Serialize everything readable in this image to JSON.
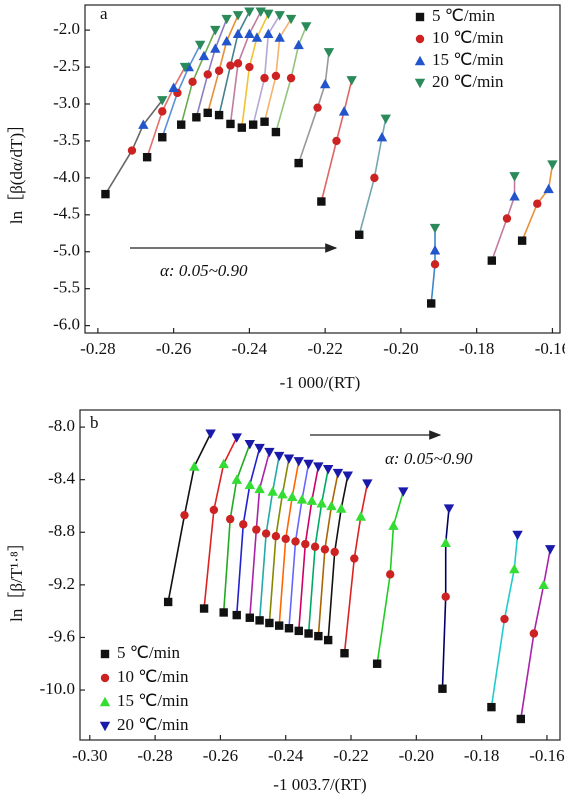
{
  "chart_data": [
    {
      "type": "scatter",
      "panel_label": "a",
      "annotation": "α: 0.05~0.90",
      "x_label": "-1 000/(RT)",
      "y_label": "ln［β(dα/dT)］",
      "xlim": [
        -0.2834,
        -0.158
      ],
      "ylim": [
        -6.1,
        -1.66
      ],
      "xticks": [
        -0.28,
        -0.26,
        -0.24,
        -0.22,
        {
          "value": -0.2,
          "label": "-0.20"
        },
        -0.18,
        -0.16
      ],
      "yticks": [
        {
          "value": -2,
          "label": "-2.0"
        },
        -2.5,
        {
          "value": -3,
          "label": "-3.0"
        },
        -3.5,
        {
          "value": -4,
          "label": "-4.0"
        },
        -4.5,
        {
          "value": -5,
          "label": "-5.0"
        },
        -5.5,
        {
          "value": -6,
          "label": "-6.0"
        }
      ],
      "legend": "top-right",
      "fit_line_colors": [
        "#666666",
        "#e07070",
        "#5b8fd6",
        "#6aa84f",
        "#8e7cc3",
        "#e69138",
        "#45818e",
        "#c27ba0",
        "#f1c232",
        "#b4a7d6",
        "#f6b26b",
        "#93c47d",
        "#999999",
        "#e06666",
        "#76a5af",
        "#3d85c6",
        "#c27ba0",
        "#e69138"
      ],
      "series": [
        {
          "name": "5 ℃/min",
          "color": "#111111",
          "marker": "square",
          "x": [
            -0.278,
            -0.267,
            -0.263,
            -0.258,
            -0.254,
            -0.251,
            -0.248,
            -0.245,
            -0.242,
            -0.239,
            -0.236,
            -0.233,
            -0.227,
            -0.221,
            -0.211,
            -0.192,
            -0.176,
            -0.168
          ],
          "values": [
            -4.22,
            -3.72,
            -3.45,
            -3.28,
            -3.18,
            -3.12,
            -3.15,
            -3.27,
            -3.32,
            -3.28,
            -3.24,
            -3.38,
            -3.8,
            -4.32,
            -4.77,
            -5.7,
            -5.12,
            -4.85
          ]
        },
        {
          "name": "10 ℃/min",
          "color": "#cc2222",
          "marker": "circle",
          "x": [
            -0.271,
            -0.263,
            -0.259,
            -0.255,
            -0.251,
            -0.248,
            -0.245,
            -0.243,
            -0.24,
            -0.236,
            -0.233,
            -0.229,
            -0.222,
            -0.217,
            -0.207,
            -0.191,
            -0.172,
            -0.164
          ],
          "values": [
            -3.63,
            -3.1,
            -2.85,
            -2.7,
            -2.6,
            -2.55,
            -2.48,
            -2.45,
            -2.5,
            -2.65,
            -2.62,
            -2.65,
            -3.05,
            -3.5,
            -4.0,
            -5.17,
            -4.55,
            -4.35
          ]
        },
        {
          "name": "15 ℃/min",
          "color": "#2255cc",
          "marker": "triangle-up",
          "x": [
            -0.268,
            -0.26,
            -0.256,
            -0.252,
            -0.249,
            -0.246,
            -0.243,
            -0.24,
            -0.238,
            -0.235,
            -0.232,
            -0.227,
            -0.22,
            -0.215,
            -0.205,
            -0.191,
            -0.17,
            -0.161
          ],
          "values": [
            -3.28,
            -2.78,
            -2.5,
            -2.35,
            -2.25,
            -2.15,
            -2.05,
            -2.05,
            -2.1,
            -2.05,
            -2.1,
            -2.2,
            -2.73,
            -3.1,
            -3.45,
            -4.98,
            -4.25,
            -4.15
          ]
        },
        {
          "name": "20 ℃/min",
          "color": "#2a8a5a",
          "marker": "triangle-down",
          "x": [
            -0.263,
            -0.257,
            -0.253,
            -0.249,
            -0.246,
            -0.243,
            -0.24,
            -0.237,
            -0.235,
            -0.232,
            -0.229,
            -0.225,
            -0.219,
            -0.213,
            -0.204,
            -0.191,
            -0.17,
            -0.16
          ],
          "values": [
            -2.95,
            -2.5,
            -2.2,
            -2.0,
            -1.85,
            -1.8,
            -1.75,
            -1.75,
            -1.78,
            -1.8,
            -1.85,
            -1.95,
            -2.3,
            -2.68,
            -3.2,
            -4.68,
            -3.98,
            -3.82
          ]
        }
      ]
    },
    {
      "type": "scatter",
      "panel_label": "b",
      "annotation": "α: 0.05~0.90",
      "x_label": "-1 003.7/(RT)",
      "y_label": "ln［β/T¹·⁸］",
      "xlim": [
        -0.303,
        -0.156
      ],
      "ylim": [
        -10.38,
        -7.87
      ],
      "xticks": [
        {
          "value": -0.3,
          "label": "-0.30"
        },
        -0.28,
        -0.26,
        -0.24,
        -0.22,
        {
          "value": -0.2,
          "label": "-0.20"
        },
        -0.18,
        -0.16
      ],
      "yticks": [
        {
          "value": -8,
          "label": "-8.0"
        },
        -8.4,
        -8.8,
        -9.2,
        -9.6,
        {
          "value": -10,
          "label": "-10.0"
        }
      ],
      "legend": "bottom-left",
      "fit_line_colors": [
        "#111111",
        "#dd2222",
        "#22aa22",
        "#2222cc",
        "#aa22aa",
        "#22aaaa",
        "#888800",
        "#ff6600",
        "#6666ff",
        "#cc0066",
        "#00aa66",
        "#aa6600",
        "#111111",
        "#dd2222",
        "#22cc22",
        "#000066",
        "#22cccc",
        "#aa22aa"
      ],
      "series": [
        {
          "name": "5 ℃/min",
          "color": "#111111",
          "marker": "square",
          "x": [
            -0.276,
            -0.265,
            -0.259,
            -0.255,
            -0.251,
            -0.248,
            -0.245,
            -0.242,
            -0.239,
            -0.236,
            -0.233,
            -0.23,
            -0.227,
            -0.222,
            -0.212,
            -0.192,
            -0.177,
            -0.168
          ],
          "values": [
            -9.33,
            -9.38,
            -9.41,
            -9.43,
            -9.45,
            -9.47,
            -9.49,
            -9.51,
            -9.53,
            -9.55,
            -9.57,
            -9.59,
            -9.62,
            -9.72,
            -9.8,
            -9.99,
            -10.13,
            -10.22
          ]
        },
        {
          "name": "10 ℃/min",
          "color": "#cc2222",
          "marker": "circle",
          "x": [
            -0.271,
            -0.262,
            -0.257,
            -0.253,
            -0.249,
            -0.246,
            -0.243,
            -0.24,
            -0.237,
            -0.234,
            -0.231,
            -0.228,
            -0.225,
            -0.219,
            -0.208,
            -0.191,
            -0.173,
            -0.164
          ],
          "values": [
            -8.67,
            -8.63,
            -8.7,
            -8.74,
            -8.78,
            -8.81,
            -8.83,
            -8.85,
            -8.87,
            -8.89,
            -8.91,
            -8.93,
            -8.95,
            -9.0,
            -9.12,
            -9.29,
            -9.46,
            -9.57
          ]
        },
        {
          "name": "15 ℃/min",
          "color": "#33dd33",
          "marker": "triangle-up",
          "x": [
            -0.268,
            -0.259,
            -0.255,
            -0.251,
            -0.248,
            -0.244,
            -0.241,
            -0.238,
            -0.235,
            -0.232,
            -0.229,
            -0.226,
            -0.223,
            -0.217,
            -0.207,
            -0.191,
            -0.17,
            -0.161
          ],
          "values": [
            -8.3,
            -8.28,
            -8.4,
            -8.44,
            -8.47,
            -8.49,
            -8.51,
            -8.53,
            -8.55,
            -8.56,
            -8.58,
            -8.6,
            -8.62,
            -8.68,
            -8.75,
            -8.88,
            -9.08,
            -9.2
          ]
        },
        {
          "name": "20 ℃/min",
          "color": "#1a1aaa",
          "marker": "triangle-down",
          "x": [
            -0.263,
            -0.255,
            -0.251,
            -0.248,
            -0.245,
            -0.242,
            -0.239,
            -0.236,
            -0.233,
            -0.23,
            -0.227,
            -0.224,
            -0.221,
            -0.215,
            -0.204,
            -0.19,
            -0.169,
            -0.159
          ],
          "values": [
            -8.05,
            -8.08,
            -8.13,
            -8.16,
            -8.19,
            -8.22,
            -8.24,
            -8.26,
            -8.28,
            -8.3,
            -8.32,
            -8.35,
            -8.37,
            -8.43,
            -8.49,
            -8.62,
            -8.82,
            -8.93
          ]
        }
      ]
    }
  ]
}
